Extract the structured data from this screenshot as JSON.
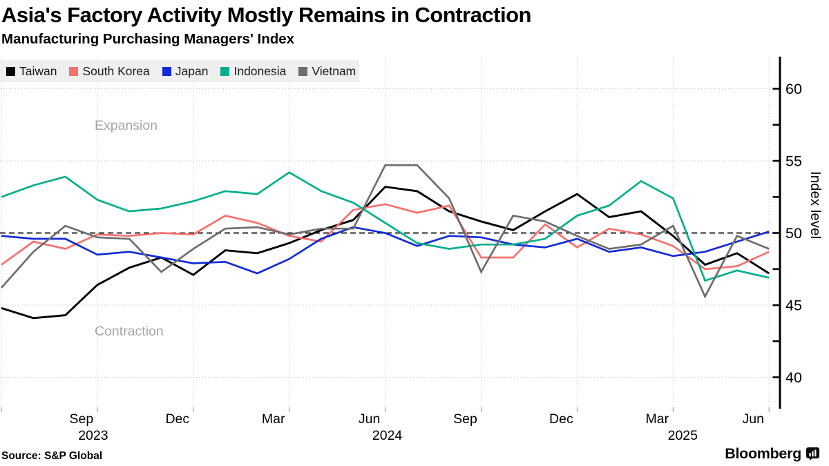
{
  "header": {
    "title": "Asia's Factory Activity Mostly Remains in Contraction",
    "subtitle": "Manufacturing Purchasing Managers' Index"
  },
  "legend": [
    {
      "label": "Taiwan",
      "color": "#000000"
    },
    {
      "label": "South Korea",
      "color": "#f6706e"
    },
    {
      "label": "Japan",
      "color": "#1129d8"
    },
    {
      "label": "Indonesia",
      "color": "#00ae8d"
    },
    {
      "label": "Vietnam",
      "color": "#6d6d6d"
    }
  ],
  "annotations": {
    "expansion": "Expansion",
    "contraction": "Contraction"
  },
  "source": "Source: S&P Global",
  "branding": "Bloomberg",
  "chart_data": {
    "type": "line",
    "title": "Asia's Factory Activity Mostly Remains in Contraction",
    "subtitle": "Manufacturing Purchasing Managers' Index",
    "xlabel": "",
    "ylabel": "Index level",
    "ylim": [
      37.6,
      62.2
    ],
    "y_ticks": [
      40,
      45,
      50,
      55,
      60
    ],
    "y_minor_tick_step": 2.5,
    "baseline": 50,
    "baseline_style": "dashed-black",
    "grid": "dotted",
    "legend_position": "top-left",
    "x": [
      "Jun 2023",
      "Jul 2023",
      "Aug 2023",
      "Sep 2023",
      "Oct 2023",
      "Nov 2023",
      "Dec 2023",
      "Jan 2024",
      "Feb 2024",
      "Mar 2024",
      "Apr 2024",
      "May 2024",
      "Jun 2024",
      "Jul 2024",
      "Aug 2024",
      "Sep 2024",
      "Oct 2024",
      "Nov 2024",
      "Dec 2024",
      "Jan 2025",
      "Feb 2025",
      "Mar 2025",
      "Apr 2025",
      "May 2025",
      "Jun 2025"
    ],
    "x_tick_labels": [
      {
        "label": "Sep",
        "month_index": 3
      },
      {
        "label": "Dec",
        "month_index": 6
      },
      {
        "label": "Mar",
        "month_index": 9
      },
      {
        "label": "Jun",
        "month_index": 12
      },
      {
        "label": "Sep",
        "month_index": 15
      },
      {
        "label": "Dec",
        "month_index": 18
      },
      {
        "label": "Mar",
        "month_index": 21
      },
      {
        "label": "Jun",
        "month_index": 24
      }
    ],
    "year_labels": [
      {
        "text": "2023",
        "month_index": 3
      },
      {
        "text": "2024",
        "month_index": 12
      },
      {
        "text": "2025",
        "month_index": 21
      }
    ],
    "series": [
      {
        "name": "Taiwan",
        "color": "#000000",
        "values": [
          44.8,
          44.1,
          44.3,
          46.4,
          47.6,
          48.3,
          47.1,
          48.8,
          48.6,
          49.3,
          50.2,
          50.9,
          53.2,
          52.9,
          51.5,
          50.8,
          50.2,
          51.5,
          52.7,
          51.1,
          51.5,
          49.8,
          47.8,
          48.6,
          47.2
        ]
      },
      {
        "name": "South Korea",
        "color": "#f6706e",
        "values": [
          47.8,
          49.4,
          48.9,
          49.9,
          49.8,
          50.0,
          49.9,
          51.2,
          50.7,
          49.8,
          49.4,
          51.6,
          52.0,
          51.4,
          51.9,
          48.3,
          48.3,
          50.6,
          49.0,
          50.3,
          49.9,
          49.1,
          47.5,
          47.7,
          48.7
        ]
      },
      {
        "name": "Japan",
        "color": "#1129d8",
        "values": [
          49.8,
          49.6,
          49.6,
          48.5,
          48.7,
          48.3,
          47.9,
          48.0,
          47.2,
          48.2,
          49.6,
          50.4,
          50.0,
          49.1,
          49.8,
          49.7,
          49.2,
          49.0,
          49.6,
          48.7,
          49.0,
          48.4,
          48.7,
          49.4,
          50.1
        ]
      },
      {
        "name": "Indonesia",
        "color": "#00ae8d",
        "values": [
          52.5,
          53.3,
          53.9,
          52.3,
          51.5,
          51.7,
          52.2,
          52.9,
          52.7,
          54.2,
          52.9,
          52.1,
          50.7,
          49.3,
          48.9,
          49.2,
          49.2,
          49.6,
          51.2,
          51.9,
          53.6,
          52.4,
          46.7,
          47.4,
          46.9
        ]
      },
      {
        "name": "Vietnam",
        "color": "#6d6d6d",
        "values": [
          46.2,
          48.7,
          50.5,
          49.7,
          49.6,
          47.3,
          48.9,
          50.3,
          50.4,
          49.9,
          50.3,
          50.3,
          54.7,
          54.7,
          52.4,
          47.3,
          51.2,
          50.8,
          49.8,
          48.9,
          49.2,
          50.5,
          45.6,
          49.8,
          48.9
        ]
      }
    ]
  }
}
